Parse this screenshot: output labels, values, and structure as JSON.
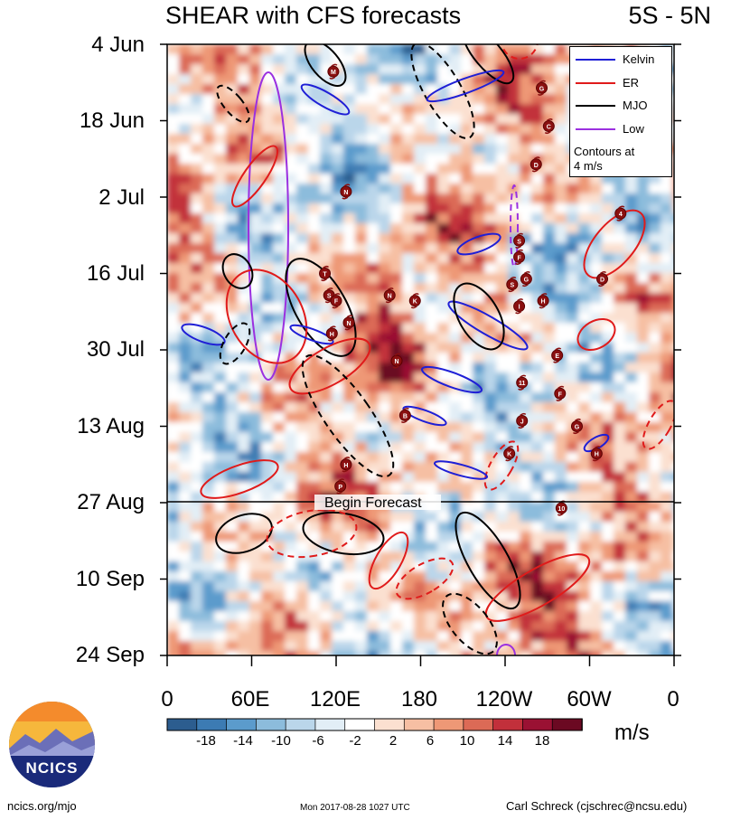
{
  "title": "SHEAR with CFS forecasts",
  "region": "5S - 5N",
  "units": "m/s",
  "legend": {
    "items": [
      {
        "label": "Kelvin",
        "color": "#1f1fd6"
      },
      {
        "label": "ER",
        "color": "#e01b1b"
      },
      {
        "label": "MJO",
        "color": "#000000"
      },
      {
        "label": "Low",
        "color": "#9b30e0"
      }
    ],
    "note_line1": "Contours at",
    "note_line2": "4 m/s"
  },
  "forecast_label": "Begin Forecast",
  "logo_text": "NCICS",
  "footer": {
    "left": "ncics.org/mjo",
    "center": "Mon 2017-08-28 1027 UTC",
    "right": "Carl Schreck (cjschrec@ncsu.edu)"
  },
  "chart_data": {
    "type": "heatmap",
    "title": "SHEAR with CFS forecasts",
    "subtitle": "5S - 5N",
    "y_ticks": [
      "4 Jun",
      "18 Jun",
      "2 Jul",
      "16 Jul",
      "30 Jul",
      "13 Aug",
      "27 Aug",
      "10 Sep",
      "24 Sep"
    ],
    "x_ticks": [
      "0",
      "60E",
      "120E",
      "180",
      "120W",
      "60W",
      "0"
    ],
    "colorbar": {
      "labels": [
        "-18",
        "-14",
        "-10",
        "-6",
        "-2",
        "2",
        "6",
        "10",
        "14",
        "18"
      ],
      "colors": [
        "#2c5d8f",
        "#3c7bb3",
        "#5b9bcc",
        "#8cbcdc",
        "#bad6ea",
        "#e2eef6",
        "#ffffff",
        "#fbe0d0",
        "#f6bfa3",
        "#ee9876",
        "#dc6a56",
        "#c2303b",
        "#9a1133",
        "#6b0922"
      ]
    },
    "legend": [
      "Kelvin",
      "ER",
      "MJO",
      "Low"
    ],
    "contour_interval": "4 m/s",
    "forecast_start": "27 Aug",
    "storm_markers": [
      {
        "label": "M",
        "lon": 118,
        "date": "9 Jun"
      },
      {
        "label": "G",
        "lon": 266,
        "date": "12 Jun"
      },
      {
        "label": "C",
        "lon": 271,
        "date": "19 Jun"
      },
      {
        "label": "D",
        "lon": 262,
        "date": "26 Jun"
      },
      {
        "label": "N",
        "lon": 127,
        "date": "1 Jul"
      },
      {
        "label": "4",
        "lon": 322,
        "date": "5 Jul"
      },
      {
        "label": "S",
        "lon": 250,
        "date": "10 Jul"
      },
      {
        "label": "F",
        "lon": 250,
        "date": "13 Jul"
      },
      {
        "label": "T",
        "lon": 112,
        "date": "16 Jul"
      },
      {
        "label": "G",
        "lon": 255,
        "date": "17 Jul"
      },
      {
        "label": "S",
        "lon": 245,
        "date": "18 Jul"
      },
      {
        "label": "D",
        "lon": 309,
        "date": "17 Jul"
      },
      {
        "label": "S",
        "lon": 115,
        "date": "20 Jul"
      },
      {
        "label": "F",
        "lon": 120,
        "date": "21 Jul"
      },
      {
        "label": "N",
        "lon": 158,
        "date": "20 Jul"
      },
      {
        "label": "K",
        "lon": 176,
        "date": "21 Jul"
      },
      {
        "label": "H",
        "lon": 267,
        "date": "21 Jul"
      },
      {
        "label": "I",
        "lon": 250,
        "date": "22 Jul"
      },
      {
        "label": "N",
        "lon": 129,
        "date": "25 Jul"
      },
      {
        "label": "H",
        "lon": 117,
        "date": "27 Jul"
      },
      {
        "label": "E",
        "lon": 277,
        "date": "31 Jul"
      },
      {
        "label": "N",
        "lon": 163,
        "date": "1 Aug"
      },
      {
        "label": "11",
        "lon": 252,
        "date": "5 Aug"
      },
      {
        "label": "F",
        "lon": 279,
        "date": "7 Aug"
      },
      {
        "label": "B",
        "lon": 169,
        "date": "11 Aug"
      },
      {
        "label": "J",
        "lon": 252,
        "date": "12 Aug"
      },
      {
        "label": "G",
        "lon": 291,
        "date": "13 Aug"
      },
      {
        "label": "K",
        "lon": 243,
        "date": "18 Aug"
      },
      {
        "label": "H",
        "lon": 305,
        "date": "18 Aug"
      },
      {
        "label": "H",
        "lon": 127,
        "date": "20 Aug"
      },
      {
        "label": "P",
        "lon": 123,
        "date": "24 Aug"
      },
      {
        "label": "10",
        "lon": 280,
        "date": "28 Aug"
      }
    ]
  }
}
